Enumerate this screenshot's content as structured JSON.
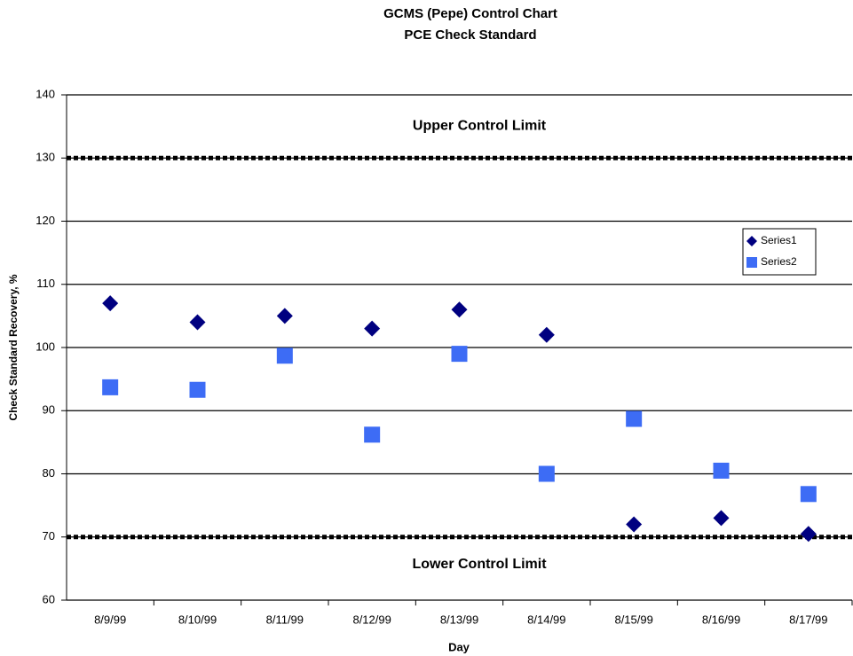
{
  "chart_data": {
    "type": "scatter",
    "title": "GCMS (Pepe) Control Chart",
    "subtitle": "PCE Check Standard",
    "x_label": "Day",
    "y_label": "Check Standard Recovery, %",
    "categories": [
      "8/9/99",
      "8/10/99",
      "8/11/99",
      "8/12/99",
      "8/13/99",
      "8/14/99",
      "8/15/99",
      "8/16/99",
      "8/17/99"
    ],
    "series": [
      {
        "name": "Series1",
        "color": "#000080",
        "marker": "diamond",
        "values": [
          107,
          104,
          105,
          103,
          106,
          102,
          72,
          73,
          70.5
        ]
      },
      {
        "name": "Series2",
        "color": "#3d6cf5",
        "marker": "square",
        "values": [
          93.7,
          93.3,
          98.7,
          86.2,
          99,
          80,
          88.7,
          80.5,
          76.8
        ]
      }
    ],
    "control_limits": [
      {
        "label": "Upper Control Limit",
        "value": 130
      },
      {
        "label": "Lower Control Limit",
        "value": 70
      }
    ],
    "ylim": [
      60,
      140
    ],
    "yticks": [
      60,
      70,
      80,
      90,
      100,
      110,
      120,
      130,
      140
    ],
    "grid": true,
    "legend": "upper-right"
  }
}
